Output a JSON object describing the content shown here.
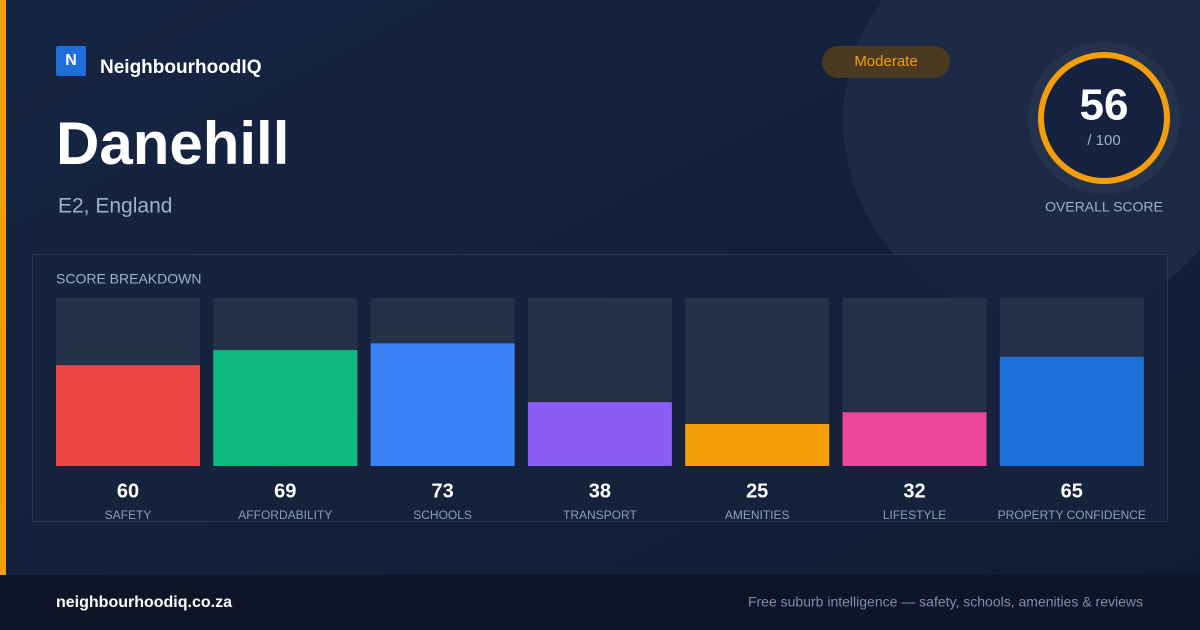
{
  "brand": {
    "logo_letter": "N",
    "name": "NeighbourhoodIQ"
  },
  "place": {
    "name": "Danehill",
    "location": "E2, England"
  },
  "badge": "Moderate",
  "overall": {
    "score": 56,
    "suffix": "/ 100",
    "label": "OVERALL SCORE"
  },
  "chart_data": {
    "type": "bar",
    "title": "SCORE BREAKDOWN",
    "categories": [
      "SAFETY",
      "AFFORDABILITY",
      "SCHOOLS",
      "TRANSPORT",
      "AMENITIES",
      "LIFESTYLE",
      "PROPERTY CONFIDENCE"
    ],
    "values": [
      60,
      69,
      73,
      38,
      25,
      32,
      65
    ],
    "colors": [
      "#ef4444",
      "#10b981",
      "#3b82f6",
      "#8b5cf6",
      "#f59e0b",
      "#ec4899",
      "#1e6fd9"
    ],
    "ylim": [
      0,
      100
    ]
  },
  "footer": {
    "site": "neighbourhoodiq.co.za",
    "tagline": "Free suburb intelligence — safety, schools, amenities & reviews"
  }
}
